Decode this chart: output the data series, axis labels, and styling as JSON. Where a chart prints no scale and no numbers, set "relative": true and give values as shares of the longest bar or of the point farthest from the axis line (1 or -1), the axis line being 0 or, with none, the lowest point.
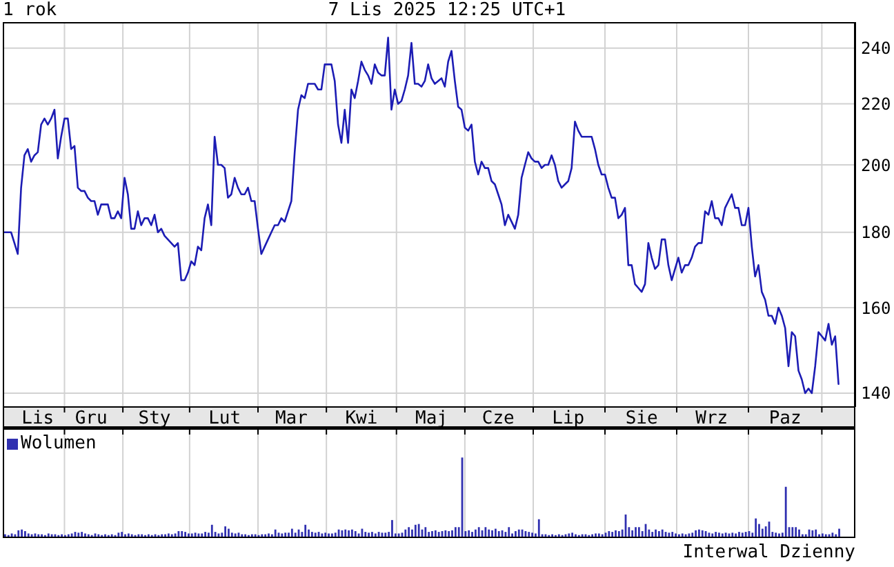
{
  "chart_data": [
    {
      "type": "line",
      "title": "1 rok",
      "subtitle": "7 Lis 2025 12:25 UTC+1",
      "color": "#1c1cb4",
      "log": true,
      "grid": true,
      "ylim": [
        137,
        250
      ],
      "yticks": [
        140,
        160,
        180,
        200,
        220,
        240
      ],
      "categories": [
        null,
        null,
        null,
        null,
        null,
        null,
        null,
        null,
        null,
        null,
        "Lis",
        null,
        null,
        null,
        null,
        null,
        null,
        null,
        null,
        null,
        null,
        null,
        null,
        null,
        null,
        null,
        "Gru",
        null,
        null,
        null,
        null,
        null,
        null,
        null,
        null,
        null,
        null,
        null,
        null,
        null,
        null,
        null,
        null,
        null,
        null,
        "Sty",
        null,
        null,
        null,
        null,
        null,
        null,
        null,
        null,
        null,
        null,
        null,
        null,
        null,
        null,
        null,
        null,
        null,
        null,
        null,
        null,
        "Lut",
        null,
        null,
        null,
        null,
        null,
        null,
        null,
        null,
        null,
        null,
        null,
        null,
        null,
        null,
        null,
        null,
        null,
        null,
        null,
        "Mar",
        null,
        null,
        null,
        null,
        null,
        null,
        null,
        null,
        null,
        null,
        null,
        null,
        null,
        null,
        null,
        null,
        null,
        null,
        null,
        null,
        "Kwi",
        null,
        null,
        null,
        null,
        null,
        null,
        null,
        null,
        null,
        null,
        null,
        null,
        null,
        null,
        null,
        null,
        null,
        null,
        null,
        null,
        "Maj",
        null,
        null,
        null,
        null,
        null,
        null,
        null,
        null,
        null,
        null,
        null,
        null,
        null,
        null,
        null,
        null,
        null,
        null,
        null,
        "Cze",
        null,
        null,
        null,
        null,
        null,
        null,
        null,
        null,
        null,
        null,
        null,
        null,
        null,
        null,
        null,
        null,
        null,
        null,
        null,
        null,
        "Lip",
        null,
        null,
        null,
        null,
        null,
        null,
        null,
        null,
        null,
        null,
        null,
        null,
        null,
        null,
        null,
        null,
        null,
        null,
        null,
        null,
        null,
        "Sie",
        null,
        null,
        null,
        null,
        null,
        null,
        null,
        null,
        null,
        null,
        null,
        null,
        null,
        null,
        null,
        null,
        null,
        null,
        null,
        null,
        "Wrz",
        null,
        null,
        null,
        null,
        null,
        null,
        null,
        null,
        null,
        null,
        null,
        null,
        null,
        null,
        null,
        null,
        null,
        null,
        null,
        null,
        null,
        "Paz",
        null,
        null,
        null,
        null,
        null,
        null,
        null,
        null,
        null,
        null,
        null,
        null,
        null,
        null,
        null,
        null
      ],
      "values": [
        180,
        180,
        180,
        177,
        174,
        193,
        203,
        205,
        201,
        203,
        204,
        213,
        215,
        213,
        215,
        218,
        202,
        209,
        215,
        215,
        205,
        206,
        193,
        192,
        192,
        190,
        189,
        189,
        185,
        188,
        188,
        188,
        184,
        184,
        186,
        184,
        196,
        191,
        181,
        181,
        186,
        182,
        184,
        184,
        182,
        185,
        180,
        181,
        179,
        178,
        177,
        176,
        177,
        167,
        167,
        169,
        172,
        171,
        176,
        175,
        184,
        188,
        182,
        209,
        200,
        200,
        199,
        190,
        191,
        196,
        193,
        191,
        191,
        193,
        189,
        189,
        181,
        174,
        176,
        178,
        180,
        182,
        182,
        184,
        183,
        186,
        189,
        204,
        218,
        223,
        222,
        227,
        227,
        227,
        225,
        225,
        234,
        234,
        234,
        228,
        213,
        207,
        218,
        207,
        225,
        222,
        228,
        235,
        232,
        230,
        227,
        234,
        231,
        230,
        230,
        244,
        218,
        225,
        220,
        221,
        225,
        230,
        242,
        227,
        227,
        226,
        228,
        234,
        229,
        227,
        228,
        229,
        226,
        235,
        239,
        228,
        219,
        218,
        212,
        211,
        213,
        201,
        197,
        201,
        199,
        199,
        195,
        194,
        191,
        188,
        182,
        185,
        183,
        181,
        185,
        196,
        200,
        204,
        202,
        201,
        201,
        199,
        200,
        200,
        203,
        200,
        195,
        193,
        194,
        195,
        199,
        214,
        211,
        209,
        209,
        209,
        209,
        205,
        200,
        197,
        197,
        193,
        190,
        190,
        184,
        185,
        187,
        171,
        171,
        166,
        165,
        164,
        166,
        177,
        173,
        170,
        171,
        178,
        178,
        171,
        167,
        170,
        173,
        169,
        171,
        171,
        173,
        176,
        177,
        177,
        186,
        185,
        189,
        184,
        184,
        182,
        187,
        189,
        191,
        187,
        187,
        182,
        182,
        187,
        176,
        168,
        171,
        164,
        162,
        158,
        158,
        156,
        160,
        158,
        155,
        146,
        154,
        153,
        145,
        143,
        140,
        141,
        140,
        146,
        154,
        153,
        152,
        156,
        151,
        153,
        142
      ]
    },
    {
      "type": "bar",
      "relative": true,
      "grid": "x",
      "legend": "top left",
      "annotations": [
        "Interwal Dzienny"
      ],
      "categories": [
        null,
        null,
        null,
        null,
        null,
        null,
        null,
        null,
        null,
        null,
        null,
        null,
        null,
        null,
        null,
        null,
        null,
        null,
        null,
        null,
        null,
        null,
        null,
        null,
        null,
        null,
        null,
        null,
        null,
        null,
        null,
        null,
        null,
        null,
        null,
        null,
        null,
        null,
        null,
        null,
        null,
        null,
        null,
        null,
        null,
        null,
        null,
        null,
        null,
        null,
        null,
        null,
        null,
        null,
        null,
        null,
        null,
        null,
        null,
        null,
        null,
        null,
        null,
        null,
        null,
        null,
        null,
        null,
        null,
        null,
        null,
        null,
        null,
        null,
        null,
        null,
        null,
        null,
        null,
        null,
        null,
        null,
        null,
        null,
        null,
        null,
        null,
        null,
        null,
        null,
        null,
        null,
        null,
        null,
        null,
        null,
        null,
        null,
        null,
        null,
        null,
        null,
        null,
        null,
        null,
        null,
        null,
        null,
        null,
        null,
        null,
        null,
        null,
        null,
        null,
        null,
        null,
        null,
        null,
        null,
        null,
        null,
        null,
        null,
        null,
        null,
        null,
        null,
        null,
        null,
        null,
        null,
        null,
        null,
        null,
        null,
        null,
        null,
        null,
        null,
        null,
        null,
        null,
        null,
        null,
        null,
        null,
        null,
        null,
        null,
        null,
        null,
        null,
        null,
        null,
        null,
        null,
        null,
        null,
        null,
        null,
        null,
        null,
        null,
        null,
        null,
        null,
        null,
        null,
        null,
        null,
        null,
        null,
        null,
        null,
        null,
        null,
        null,
        null,
        null,
        null,
        null,
        null,
        null,
        null,
        null,
        null,
        null,
        null,
        null,
        null,
        null,
        null,
        null,
        null,
        null,
        null,
        null,
        null,
        null,
        null,
        null,
        null,
        null,
        null,
        null,
        null,
        null,
        null,
        null,
        null,
        null,
        null,
        null,
        null,
        null,
        null,
        null,
        null,
        null,
        null,
        null,
        null,
        null,
        null,
        null,
        null,
        null,
        null,
        null,
        null,
        null,
        null,
        null,
        null,
        null,
        null,
        null,
        null,
        null,
        null,
        null,
        null,
        null,
        null,
        null,
        null,
        null,
        null,
        null,
        null
      ],
      "series": [
        {
          "name": "Wolumen",
          "color": "#3030b0",
          "values": [
            0.03,
            0.02,
            0.04,
            0.03,
            0.08,
            0.09,
            0.07,
            0.04,
            0.03,
            0.04,
            0.03,
            0.03,
            0.02,
            0.04,
            0.03,
            0.03,
            0.02,
            0.03,
            0.02,
            0.03,
            0.04,
            0.06,
            0.05,
            0.06,
            0.04,
            0.03,
            0.02,
            0.04,
            0.03,
            0.02,
            0.03,
            0.02,
            0.03,
            0.02,
            0.05,
            0.06,
            0.03,
            0.04,
            0.03,
            0.02,
            0.03,
            0.03,
            0.02,
            0.03,
            0.02,
            0.03,
            0.02,
            0.03,
            0.03,
            0.04,
            0.03,
            0.04,
            0.07,
            0.07,
            0.06,
            0.04,
            0.04,
            0.05,
            0.04,
            0.04,
            0.06,
            0.05,
            0.15,
            0.06,
            0.04,
            0.05,
            0.13,
            0.1,
            0.05,
            0.04,
            0.05,
            0.03,
            0.03,
            0.02,
            0.03,
            0.03,
            0.02,
            0.03,
            0.03,
            0.04,
            0.03,
            0.09,
            0.05,
            0.04,
            0.05,
            0.05,
            0.1,
            0.05,
            0.09,
            0.06,
            0.15,
            0.09,
            0.06,
            0.05,
            0.06,
            0.04,
            0.05,
            0.04,
            0.04,
            0.05,
            0.09,
            0.08,
            0.09,
            0.08,
            0.09,
            0.07,
            0.04,
            0.1,
            0.06,
            0.05,
            0.06,
            0.04,
            0.06,
            0.05,
            0.05,
            0.06,
            0.21,
            0.04,
            0.04,
            0.05,
            0.09,
            0.12,
            0.09,
            0.15,
            0.16,
            0.09,
            0.12,
            0.06,
            0.07,
            0.08,
            0.06,
            0.07,
            0.08,
            0.07,
            0.08,
            0.12,
            0.12,
            1,
            0.07,
            0.08,
            0.06,
            0.09,
            0.12,
            0.08,
            0.12,
            0.09,
            0.08,
            0.1,
            0.07,
            0.08,
            0.06,
            0.12,
            0.04,
            0.07,
            0.09,
            0.09,
            0.07,
            0.06,
            0.05,
            0.04,
            0.22,
            0.03,
            0.03,
            0.02,
            0.03,
            0.02,
            0.03,
            0.02,
            0.03,
            0.04,
            0.05,
            0.03,
            0.02,
            0.03,
            0.03,
            0.02,
            0.03,
            0.04,
            0.04,
            0.03,
            0.05,
            0.07,
            0.06,
            0.08,
            0.07,
            0.09,
            0.28,
            0.12,
            0.08,
            0.12,
            0.12,
            0.07,
            0.16,
            0.09,
            0.06,
            0.09,
            0.07,
            0.09,
            0.06,
            0.05,
            0.06,
            0.04,
            0.03,
            0.04,
            0.03,
            0.04,
            0.05,
            0.08,
            0.09,
            0.08,
            0.07,
            0.05,
            0.04,
            0.06,
            0.05,
            0.04,
            0.05,
            0.04,
            0.05,
            0.04,
            0.06,
            0.05,
            0.06,
            0.07,
            0.05,
            0.23,
            0.16,
            0.1,
            0.13,
            0.19,
            0.06,
            0.05,
            0.04,
            0.05,
            0.63,
            0.12,
            0.12,
            0.12,
            0.09,
            0.03,
            0.03,
            0.09,
            0.08,
            0.09,
            0.03,
            0.04,
            0.03,
            0.03,
            0.05,
            0.03,
            0.1
          ]
        }
      ]
    }
  ]
}
